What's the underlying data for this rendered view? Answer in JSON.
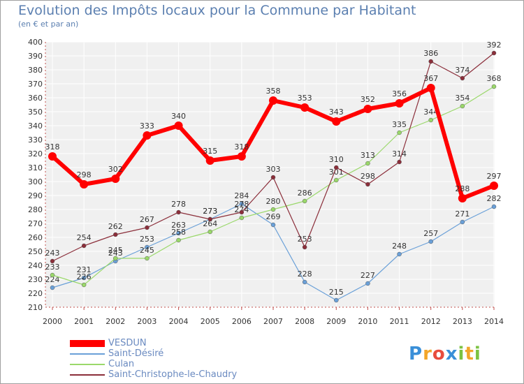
{
  "chart_data": {
    "type": "line",
    "title": "Evolution des Impôts locaux pour la Commune par Habitant",
    "subtitle": "(en € et par an)",
    "categories": [
      "2000",
      "2001",
      "2002",
      "2003",
      "2004",
      "2005",
      "2006",
      "2007",
      "2008",
      "2009",
      "2010",
      "2011",
      "2012",
      "2013",
      "2014"
    ],
    "y_ticks": [
      210,
      220,
      230,
      240,
      250,
      260,
      270,
      280,
      290,
      300,
      310,
      320,
      330,
      340,
      350,
      360,
      370,
      380,
      390,
      400
    ],
    "ylim": [
      210,
      400
    ],
    "grid": true,
    "series": [
      {
        "name": "VESDUN",
        "color": "#ff0000",
        "values": [
          318,
          298,
          302,
          333,
          340,
          315,
          318,
          358,
          353,
          343,
          352,
          356,
          367,
          288,
          297
        ]
      },
      {
        "name": "Saint-Désiré",
        "color": "#6aa0d8",
        "values": [
          224,
          231,
          243,
          253,
          263,
          273,
          284,
          269,
          228,
          215,
          227,
          248,
          257,
          271,
          282
        ]
      },
      {
        "name": "Culan",
        "color": "#9ad86a",
        "values": [
          233,
          226,
          245,
          245,
          258,
          264,
          274,
          280,
          286,
          301,
          313,
          335,
          344,
          354,
          368
        ]
      },
      {
        "name": "Saint-Christophe-le-Chaudry",
        "color": "#8b2e3a",
        "values": [
          243,
          254,
          262,
          267,
          278,
          273,
          278,
          303,
          253,
          310,
          298,
          314,
          386,
          374,
          392
        ]
      }
    ]
  },
  "logo": {
    "text": "Proxiti",
    "letters": [
      "P",
      "r",
      "o",
      "x",
      "i",
      "t",
      "i"
    ],
    "colors": [
      "#3a8fd8",
      "#f2a62a",
      "#e84c3d",
      "#3a8fd8",
      "#7cc242",
      "#f2a62a",
      "#7cc242"
    ]
  }
}
